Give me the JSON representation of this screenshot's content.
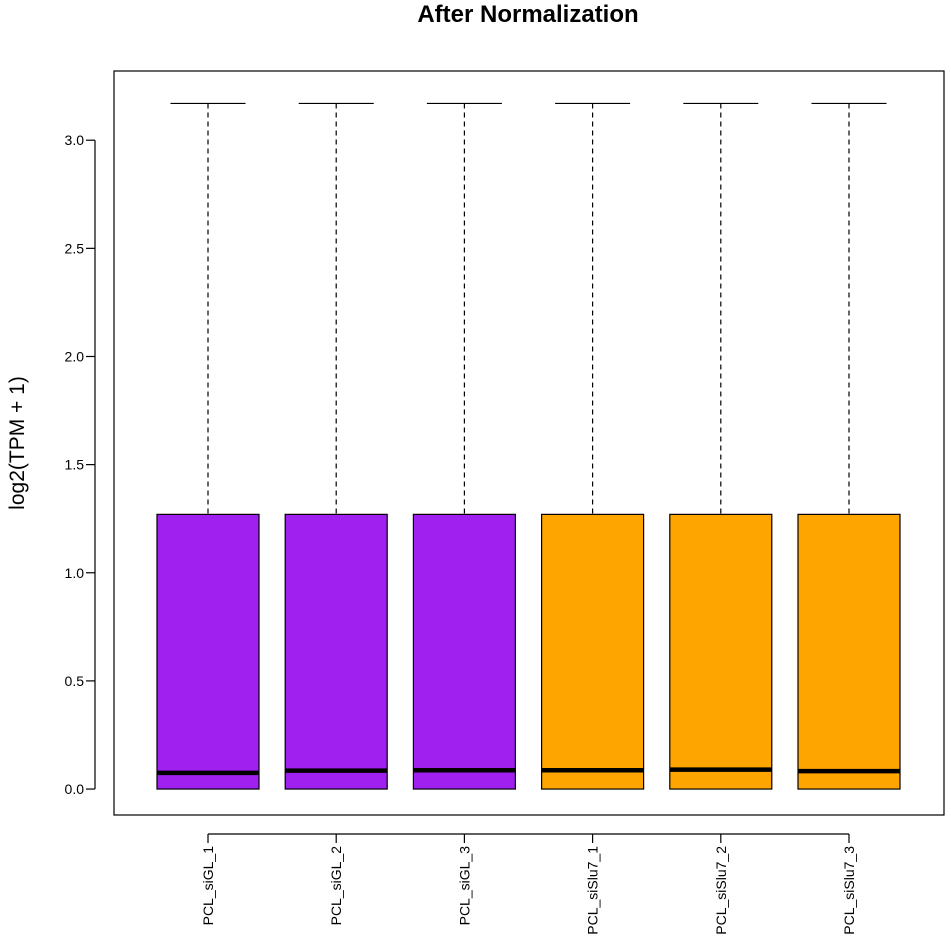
{
  "chart_data": {
    "type": "boxplot",
    "title": "After Normalization",
    "xlabel": "",
    "ylabel": "log2(TPM + 1)",
    "ylim": [
      -0.12,
      3.32
    ],
    "yticks": [
      "0.0",
      "0.5",
      "1.0",
      "1.5",
      "2.0",
      "2.5",
      "3.0"
    ],
    "categories": [
      "PCL_siGL_1",
      "PCL_siGL_2",
      "PCL_siGL_3",
      "PCL_siSlu7_1",
      "PCL_siSlu7_2",
      "PCL_siSlu7_3"
    ],
    "boxes": [
      {
        "min": 0.0,
        "q1": 0.0,
        "median": 0.075,
        "q3": 1.27,
        "max": 3.17,
        "color": "#a020f0"
      },
      {
        "min": 0.0,
        "q1": 0.0,
        "median": 0.085,
        "q3": 1.27,
        "max": 3.17,
        "color": "#a020f0"
      },
      {
        "min": 0.0,
        "q1": 0.0,
        "median": 0.087,
        "q3": 1.27,
        "max": 3.17,
        "color": "#a020f0"
      },
      {
        "min": 0.0,
        "q1": 0.0,
        "median": 0.087,
        "q3": 1.27,
        "max": 3.17,
        "color": "#ffa500"
      },
      {
        "min": 0.0,
        "q1": 0.0,
        "median": 0.09,
        "q3": 1.27,
        "max": 3.17,
        "color": "#ffa500"
      },
      {
        "min": 0.0,
        "q1": 0.0,
        "median": 0.083,
        "q3": 1.27,
        "max": 3.17,
        "color": "#ffa500"
      }
    ],
    "grid": false,
    "legend": "none"
  }
}
